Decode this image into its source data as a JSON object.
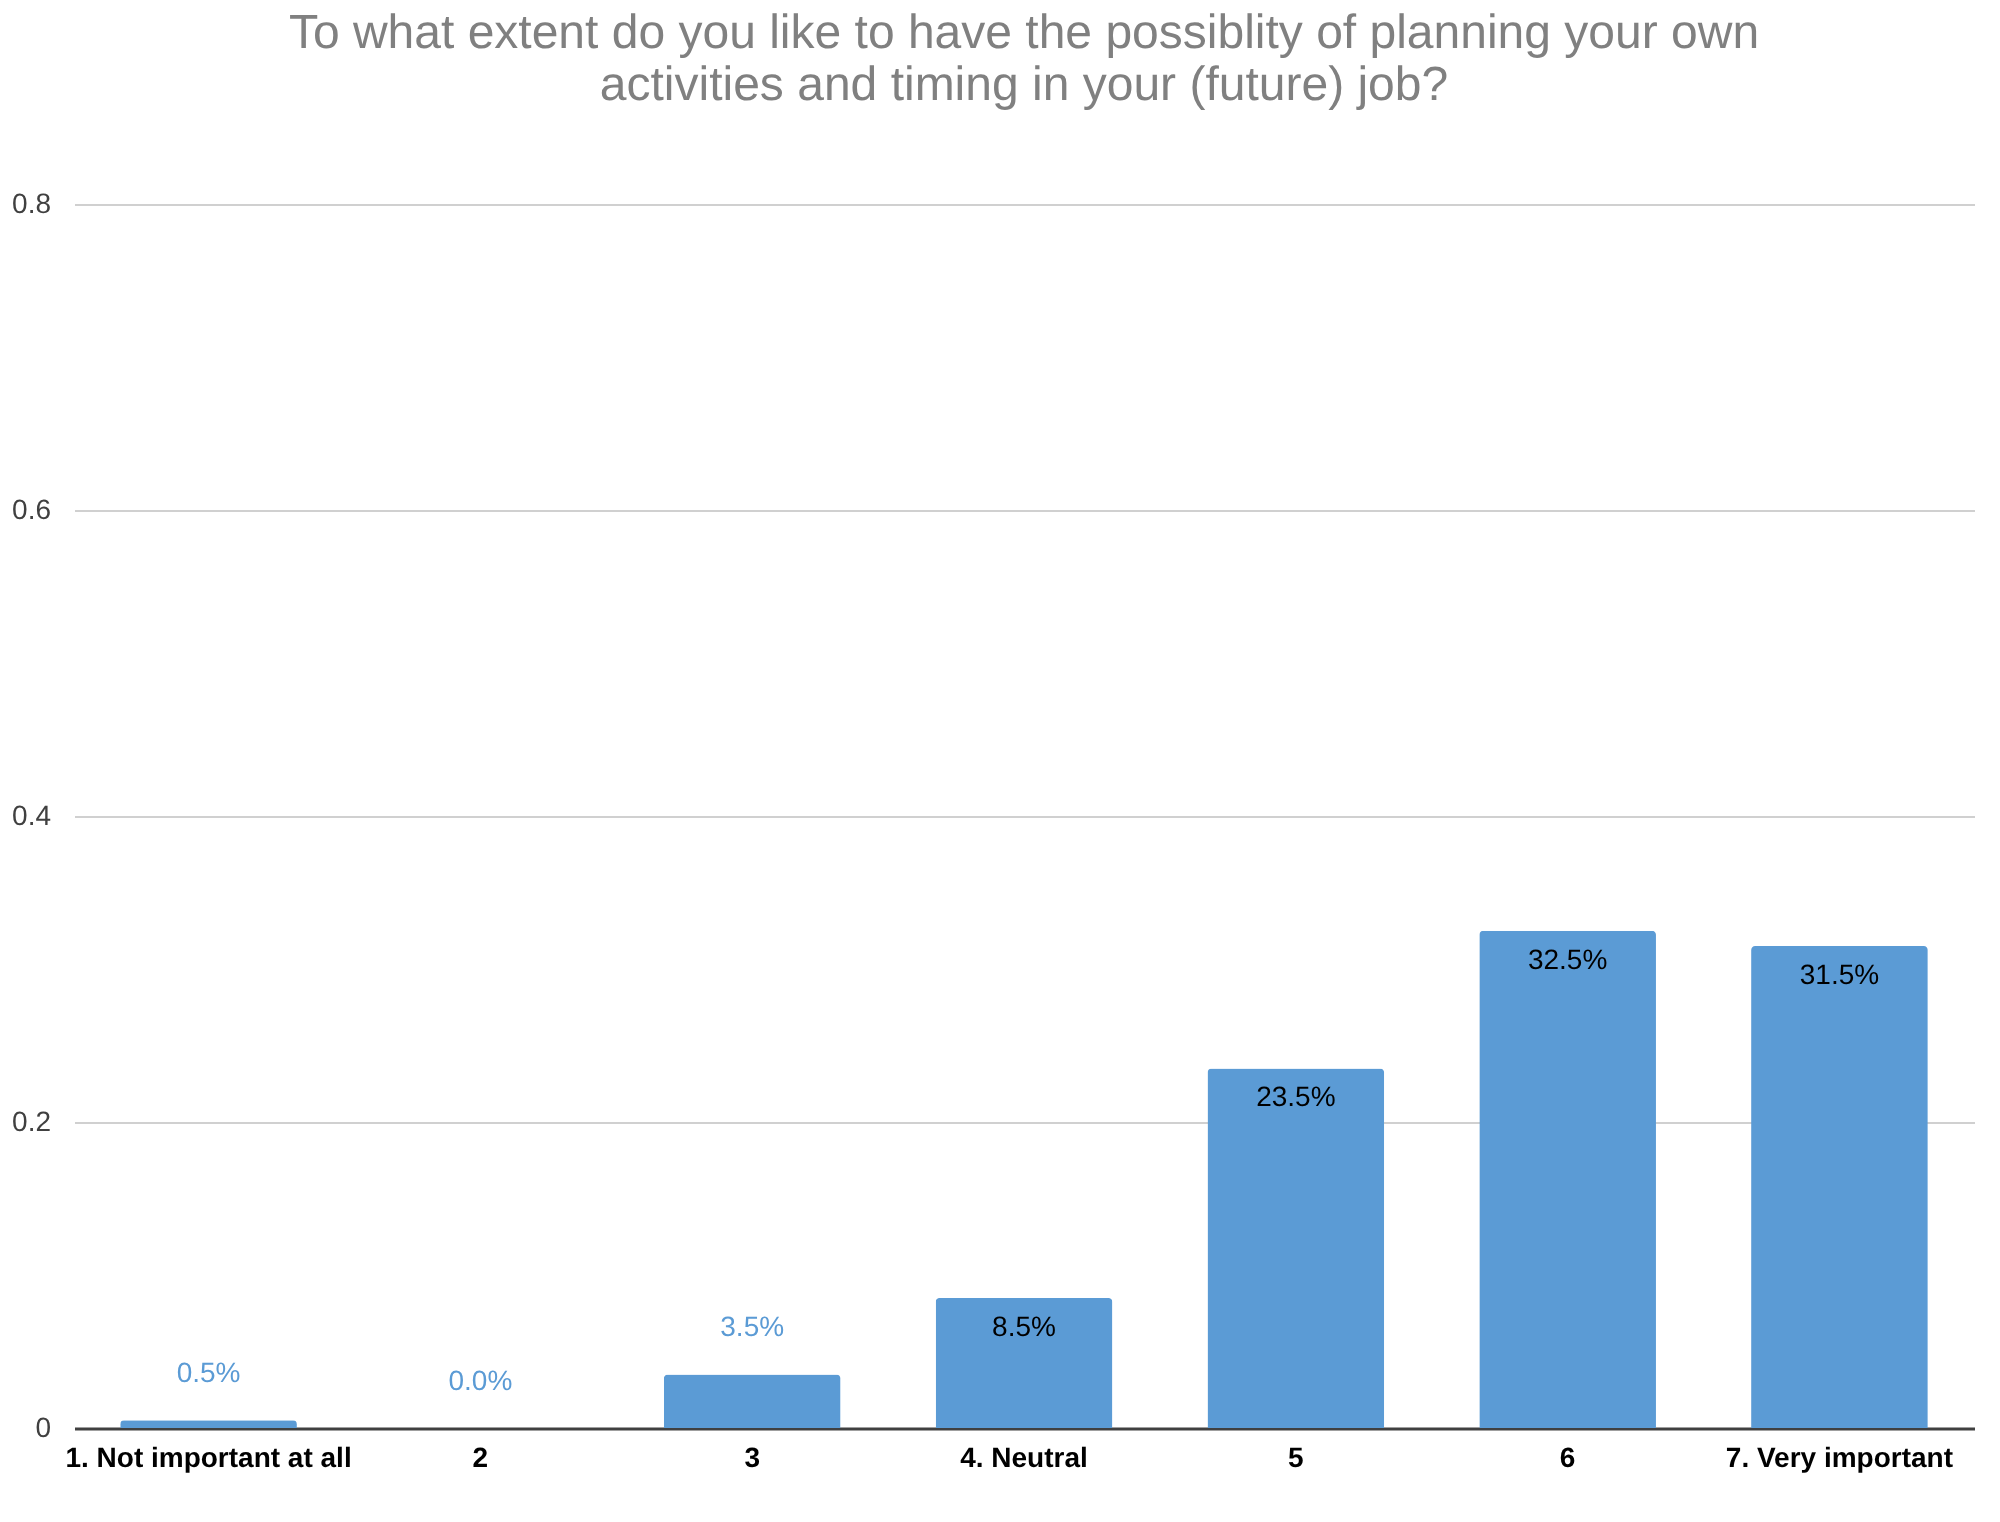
{
  "chart_data": {
    "type": "bar",
    "title": "To what extent do you like to have the possiblity of planning your own activities and timing in your (future) job?",
    "categories": [
      "1. Not important at all",
      "2",
      "3",
      "4. Neutral",
      "5",
      "6",
      "7. Very important"
    ],
    "values": [
      0.005,
      0.0,
      0.035,
      0.085,
      0.235,
      0.325,
      0.315
    ],
    "value_labels": [
      "0.5%",
      "0.0%",
      "3.5%",
      "8.5%",
      "23.5%",
      "32.5%",
      "31.5%"
    ],
    "color": "#5b9bd5",
    "ylim": [
      0,
      0.8
    ],
    "yticks": [
      0,
      0.2,
      0.4,
      0.6,
      0.8
    ],
    "grid": "y"
  }
}
